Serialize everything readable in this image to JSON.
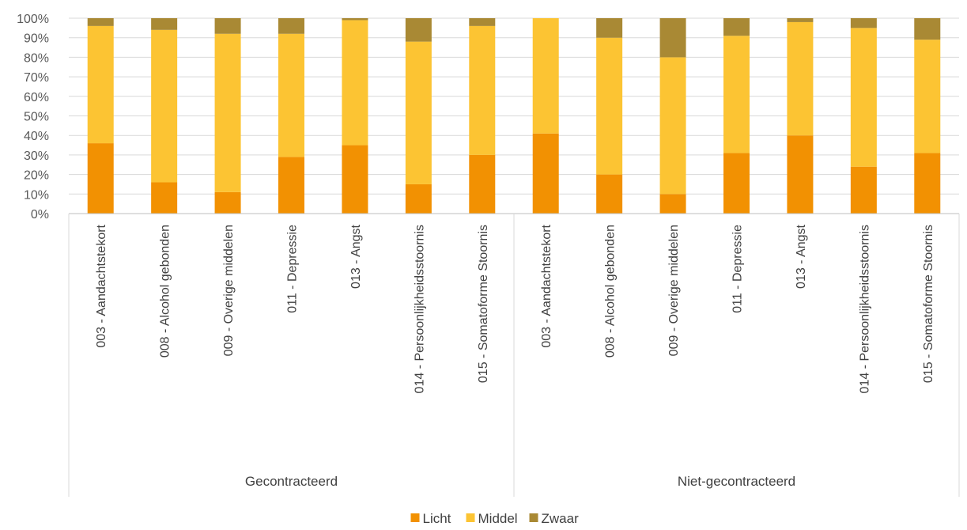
{
  "chart_data": {
    "type": "bar",
    "stacked": "percent",
    "groups": [
      {
        "name": "Gecontracteerd",
        "categories": [
          "003 - Aandachtstekort",
          "008 - Alcohol gebonden",
          "009 - Overige middelen",
          "011 - Depressie",
          "013 - Angst",
          "014 - Persoonlijkheidsstoornis",
          "015 - Somatoforme Stoornis"
        ]
      },
      {
        "name": "Niet-gecontracteerd",
        "categories": [
          "003 - Aandachtstekort",
          "008 - Alcohol gebonden",
          "009 - Overige middelen",
          "011 - Depressie",
          "013 - Angst",
          "014 - Persoonlijkheidsstoornis",
          "015 - Somatoforme Stoornis"
        ]
      }
    ],
    "series": [
      {
        "name": "Licht",
        "color": "#f29102",
        "values": [
          36,
          16,
          11,
          29,
          35,
          15,
          30,
          41,
          20,
          10,
          31,
          40,
          24,
          31
        ]
      },
      {
        "name": "Middel",
        "color": "#fcc433",
        "values": [
          60,
          78,
          81,
          63,
          64,
          73,
          66,
          59,
          70,
          70,
          60,
          58,
          71,
          58
        ]
      },
      {
        "name": "Zwaar",
        "color": "#a98934",
        "values": [
          4,
          6,
          8,
          8,
          1,
          12,
          4,
          0,
          10,
          20,
          9,
          2,
          5,
          11
        ]
      }
    ],
    "y_ticks": [
      "0%",
      "10%",
      "20%",
      "30%",
      "40%",
      "50%",
      "60%",
      "70%",
      "80%",
      "90%",
      "100%"
    ],
    "ylim": [
      0,
      100
    ],
    "grid": true,
    "legend_position": "bottom"
  }
}
